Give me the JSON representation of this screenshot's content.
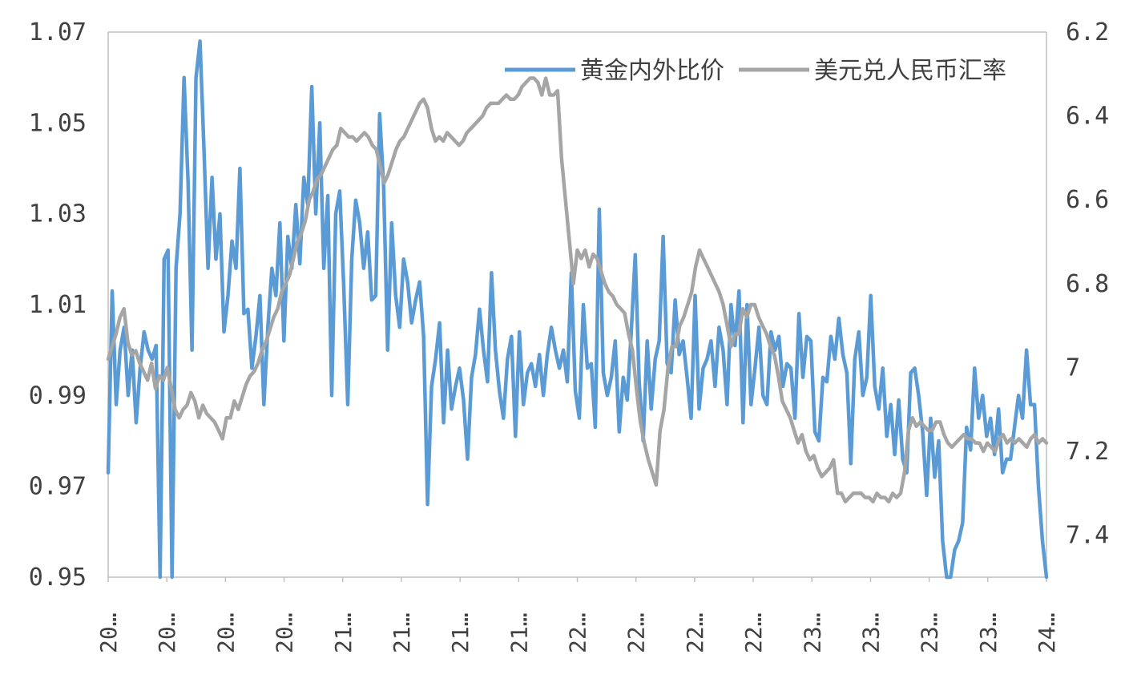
{
  "chart_data": {
    "type": "line",
    "series": [
      {
        "name": "黄金内外比价",
        "axis": "left",
        "color": "#5B9BD5",
        "values": [
          0.973,
          1.013,
          0.988,
          1.0,
          1.005,
          0.99,
          1.0,
          0.984,
          0.996,
          1.004,
          1.0,
          0.998,
          1.001,
          0.95,
          1.02,
          1.022,
          0.95,
          1.018,
          1.03,
          1.06,
          1.037,
          1.0,
          1.06,
          1.068,
          1.044,
          1.018,
          1.038,
          1.02,
          1.03,
          1.004,
          1.012,
          1.024,
          1.018,
          1.04,
          1.008,
          1.009,
          0.996,
          1.003,
          1.012,
          0.988,
          1.005,
          1.018,
          1.012,
          1.028,
          1.002,
          1.025,
          1.018,
          1.032,
          1.019,
          1.038,
          1.032,
          1.058,
          1.03,
          1.05,
          1.018,
          1.034,
          0.99,
          1.03,
          1.035,
          1.014,
          0.988,
          1.02,
          1.033,
          1.028,
          1.018,
          1.026,
          1.011,
          1.012,
          1.052,
          1.036,
          1.0,
          1.028,
          1.012,
          1.005,
          1.02,
          1.015,
          1.006,
          1.011,
          1.015,
          1.003,
          0.966,
          0.992,
          0.998,
          1.006,
          0.984,
          1.0,
          0.987,
          0.992,
          0.996,
          0.989,
          0.976,
          0.994,
          0.999,
          1.009,
          1.0,
          0.993,
          1.017,
          1.0,
          0.991,
          0.985,
          0.998,
          1.003,
          0.981,
          1.004,
          0.988,
          0.995,
          0.997,
          0.992,
          0.999,
          0.99,
          0.999,
          1.005,
          1.0,
          0.996,
          1.0,
          0.993,
          1.017,
          0.991,
          0.985,
          1.01,
          0.996,
          0.997,
          0.983,
          1.031,
          0.995,
          0.99,
          0.994,
          1.002,
          0.982,
          0.994,
          0.989,
          1.004,
          1.021,
          0.993,
          0.98,
          1.002,
          0.987,
          0.998,
          1.002,
          1.025,
          0.997,
          0.995,
          1.011,
          0.999,
          1.002,
          0.994,
          0.985,
          1.012,
          0.987,
          0.996,
          0.998,
          1.002,
          0.992,
          1.005,
          1.0,
          0.988,
          1.01,
          1.001,
          1.013,
          0.984,
          1.01,
          0.988,
          0.996,
          1.005,
          0.99,
          0.988,
          1.004,
          1.0,
          1.003,
          0.992,
          0.997,
          0.996,
          0.985,
          1.008,
          0.994,
          1.003,
          1.002,
          0.982,
          0.98,
          0.994,
          0.993,
          1.003,
          0.998,
          1.007,
          0.999,
          0.995,
          0.975,
          0.998,
          1.004,
          0.99,
          0.994,
          1.012,
          0.992,
          0.987,
          0.996,
          0.981,
          0.988,
          0.977,
          0.989,
          0.976,
          0.973,
          0.995,
          0.996,
          0.99,
          0.982,
          0.968,
          0.985,
          0.972,
          0.98,
          0.958,
          0.95,
          0.95,
          0.956,
          0.958,
          0.962,
          0.983,
          0.978,
          0.996,
          0.985,
          0.99,
          0.981,
          0.985,
          0.977,
          0.987,
          0.973,
          0.976,
          0.976,
          0.983,
          0.99,
          0.985,
          1.0,
          0.988,
          0.988,
          0.97,
          0.958,
          0.95
        ]
      },
      {
        "name": "美元兑人民币汇率",
        "axis": "right",
        "color": "#A5A5A5",
        "values": [
          6.98,
          6.95,
          6.92,
          6.88,
          6.86,
          6.94,
          6.97,
          6.96,
          6.99,
          7.01,
          7.03,
          6.99,
          7.05,
          7.02,
          7.03,
          7.0,
          7.05,
          7.1,
          7.12,
          7.1,
          7.09,
          7.06,
          7.08,
          7.12,
          7.09,
          7.11,
          7.12,
          7.13,
          7.15,
          7.17,
          7.12,
          7.12,
          7.08,
          7.1,
          7.07,
          7.04,
          7.02,
          7.01,
          6.99,
          6.96,
          6.94,
          6.91,
          6.88,
          6.86,
          6.82,
          6.8,
          6.78,
          6.74,
          6.7,
          6.68,
          6.65,
          6.6,
          6.58,
          6.55,
          6.54,
          6.52,
          6.5,
          6.48,
          6.47,
          6.43,
          6.44,
          6.45,
          6.45,
          6.46,
          6.45,
          6.44,
          6.45,
          6.47,
          6.48,
          6.52,
          6.56,
          6.54,
          6.51,
          6.48,
          6.46,
          6.45,
          6.43,
          6.41,
          6.39,
          6.37,
          6.36,
          6.38,
          6.43,
          6.46,
          6.45,
          6.46,
          6.44,
          6.45,
          6.46,
          6.47,
          6.46,
          6.44,
          6.43,
          6.42,
          6.41,
          6.4,
          6.38,
          6.37,
          6.37,
          6.37,
          6.36,
          6.35,
          6.36,
          6.36,
          6.35,
          6.33,
          6.32,
          6.31,
          6.31,
          6.32,
          6.35,
          6.31,
          6.35,
          6.35,
          6.34,
          6.5,
          6.6,
          6.7,
          6.8,
          6.72,
          6.74,
          6.72,
          6.76,
          6.73,
          6.74,
          6.77,
          6.8,
          6.82,
          6.83,
          6.85,
          6.86,
          6.87,
          6.92,
          6.96,
          7.05,
          7.13,
          7.18,
          7.22,
          7.25,
          7.28,
          7.15,
          7.1,
          7.0,
          6.95,
          6.95,
          6.9,
          6.88,
          6.85,
          6.82,
          6.76,
          6.72,
          6.74,
          6.76,
          6.78,
          6.8,
          6.82,
          6.85,
          6.9,
          6.95,
          6.92,
          6.92,
          6.86,
          6.88,
          6.85,
          6.85,
          6.88,
          6.9,
          6.92,
          6.95,
          6.97,
          7.02,
          7.08,
          7.1,
          7.12,
          7.15,
          7.18,
          7.16,
          7.2,
          7.22,
          7.21,
          7.24,
          7.26,
          7.25,
          7.24,
          7.22,
          7.3,
          7.3,
          7.32,
          7.31,
          7.3,
          7.3,
          7.3,
          7.31,
          7.31,
          7.32,
          7.3,
          7.31,
          7.31,
          7.32,
          7.3,
          7.31,
          7.3,
          7.25,
          7.15,
          7.12,
          7.14,
          7.13,
          7.14,
          7.15,
          7.15,
          7.13,
          7.13,
          7.16,
          7.18,
          7.19,
          7.18,
          7.17,
          7.16,
          7.17,
          7.17,
          7.18,
          7.18,
          7.2,
          7.18,
          7.19,
          7.2,
          7.17,
          7.16,
          7.18,
          7.17,
          7.18,
          7.17,
          7.18,
          7.19,
          7.17,
          7.16,
          7.18,
          7.17,
          7.18
        ]
      }
    ],
    "y_left": {
      "ticks": [
        "1.07",
        "1.05",
        "1.03",
        "1.01",
        "0.99",
        "0.97",
        "0.95"
      ],
      "range": [
        0.95,
        1.07
      ]
    },
    "y_right": {
      "ticks": [
        "6.2",
        "6.4",
        "6.6",
        "6.8",
        "7",
        "7.2",
        "7.4"
      ],
      "range": [
        6.2,
        7.5
      ],
      "inverted": true
    },
    "x_ticks": [
      "20…",
      "20…",
      "20…",
      "20…",
      "21…",
      "21…",
      "21…",
      "21…",
      "22…",
      "22…",
      "22…",
      "22…",
      "23…",
      "23…",
      "23…",
      "23…",
      "24…"
    ],
    "legend_position": "top-right",
    "grid": false
  }
}
